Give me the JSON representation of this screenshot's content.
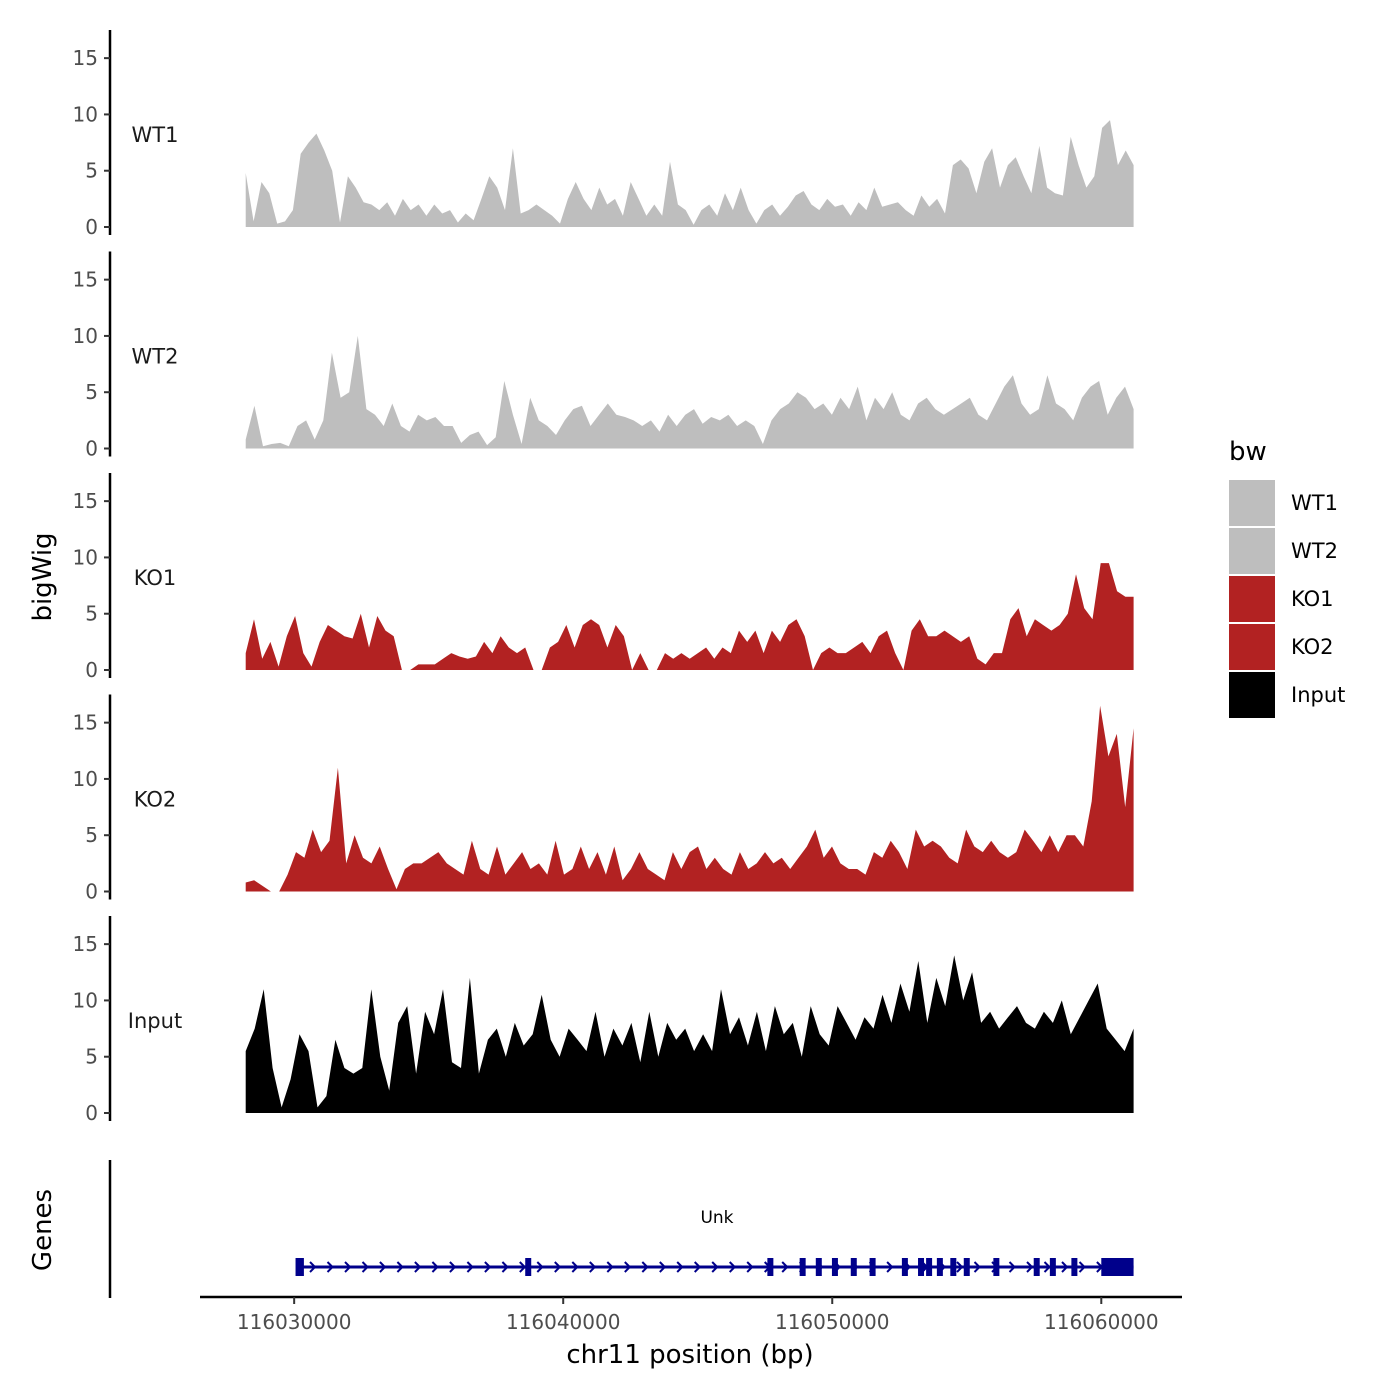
{
  "chart_data": {
    "type": "area",
    "chromosome": "chr11",
    "xlabel": "chr11 position (bp)",
    "ylabel": "bigWig",
    "genes_label": "Genes",
    "xlim": [
      116026500,
      116063000
    ],
    "x_ticks": [
      116030000,
      116040000,
      116050000,
      116060000
    ],
    "x_tick_labels": [
      "116030000",
      "116040000",
      "116050000",
      "116060000"
    ],
    "ylim": [
      0,
      17.5
    ],
    "y_ticks": [
      0,
      5,
      10,
      15
    ],
    "y_tick_labels": [
      "0",
      "5",
      "10",
      "15"
    ],
    "data_start": 116028200,
    "data_end": 116061200,
    "legend": {
      "title": "bw",
      "position": "right",
      "entries": [
        {
          "label": "WT1",
          "color": "#bebebe"
        },
        {
          "label": "WT2",
          "color": "#bebebe"
        },
        {
          "label": "KO1",
          "color": "#b22222"
        },
        {
          "label": "KO2",
          "color": "#b22222"
        },
        {
          "label": "Input",
          "color": "#000000"
        }
      ]
    },
    "series": [
      {
        "name": "WT1",
        "color": "#bebebe",
        "values": [
          4.8,
          0.5,
          4.0,
          3.0,
          0.3,
          0.5,
          1.5,
          6.5,
          7.5,
          8.3,
          6.8,
          5.0,
          0.4,
          4.5,
          3.5,
          2.2,
          2.0,
          1.5,
          2.2,
          1.0,
          2.5,
          1.5,
          2.0,
          1.0,
          2.0,
          1.2,
          1.5,
          0.4,
          1.2,
          0.6,
          2.5,
          4.5,
          3.5,
          1.5,
          7.0,
          1.2,
          1.5,
          2.0,
          1.5,
          1.0,
          0.3,
          2.5,
          4.0,
          2.5,
          1.5,
          3.5,
          2.0,
          2.5,
          1.0,
          4.0,
          2.5,
          1.0,
          2.0,
          1.0,
          5.8,
          2.0,
          1.5,
          0.2,
          1.5,
          2.0,
          1.0,
          3.0,
          1.5,
          3.5,
          1.5,
          0.3,
          1.5,
          2.0,
          1.0,
          1.8,
          2.8,
          3.2,
          2.0,
          1.5,
          2.5,
          1.8,
          2.0,
          1.0,
          2.2,
          1.5,
          3.5,
          1.8,
          2.0,
          2.2,
          1.5,
          1.0,
          2.8,
          1.8,
          2.5,
          1.2,
          5.5,
          6.0,
          5.2,
          3.0,
          5.8,
          7.0,
          3.5,
          5.5,
          6.2,
          4.5,
          3.0,
          7.2,
          3.5,
          3.0,
          2.8,
          8.0,
          5.5,
          3.5,
          4.5,
          8.8,
          9.5,
          5.5,
          6.8,
          5.5
        ]
      },
      {
        "name": "WT2",
        "color": "#bebebe",
        "values": [
          0.8,
          3.8,
          0.2,
          0.4,
          0.5,
          0.2,
          2.0,
          2.5,
          0.8,
          2.5,
          8.5,
          4.5,
          5.0,
          10.0,
          3.5,
          3.0,
          2.0,
          4.0,
          2.0,
          1.5,
          3.0,
          2.5,
          2.8,
          2.0,
          2.0,
          0.5,
          1.2,
          1.5,
          0.3,
          1.0,
          6.0,
          3.0,
          0.4,
          4.5,
          2.5,
          2.0,
          1.2,
          2.5,
          3.5,
          3.8,
          2.0,
          3.0,
          4.0,
          3.0,
          2.8,
          2.5,
          2.0,
          2.5,
          1.5,
          3.0,
          2.0,
          3.0,
          3.5,
          2.2,
          2.8,
          2.5,
          3.0,
          2.0,
          2.5,
          2.0,
          0.4,
          2.5,
          3.5,
          4.0,
          5.0,
          4.5,
          3.5,
          4.0,
          3.0,
          4.5,
          3.5,
          5.5,
          2.5,
          4.5,
          3.5,
          5.0,
          3.0,
          2.5,
          4.0,
          4.5,
          3.5,
          3.0,
          3.5,
          4.0,
          4.5,
          3.0,
          2.5,
          4.0,
          5.5,
          6.5,
          4.0,
          3.0,
          3.5,
          6.5,
          4.0,
          3.5,
          2.5,
          4.5,
          5.5,
          6.0,
          3.0,
          4.5,
          5.5,
          3.5
        ]
      },
      {
        "name": "KO1",
        "color": "#b22222",
        "values": [
          1.5,
          4.5,
          1.0,
          2.5,
          0.3,
          3.0,
          4.8,
          1.5,
          0.3,
          2.5,
          4.0,
          3.5,
          3.0,
          2.8,
          5.0,
          2.0,
          4.8,
          3.5,
          3.0,
          0.0,
          0.0,
          0.5,
          0.5,
          0.5,
          1.0,
          1.5,
          1.2,
          1.0,
          1.2,
          2.5,
          1.5,
          3.0,
          2.0,
          1.5,
          2.0,
          0.0,
          0.0,
          2.0,
          2.5,
          4.0,
          2.0,
          4.0,
          4.5,
          4.0,
          2.0,
          4.0,
          3.0,
          0.0,
          1.5,
          0.0,
          0.0,
          1.5,
          1.0,
          1.5,
          1.0,
          1.5,
          2.0,
          1.0,
          2.0,
          1.5,
          3.5,
          2.5,
          3.5,
          1.5,
          3.5,
          2.5,
          4.0,
          4.5,
          3.0,
          0.0,
          1.5,
          2.0,
          1.5,
          1.5,
          2.0,
          2.5,
          1.5,
          3.0,
          3.5,
          1.5,
          0.0,
          3.5,
          4.5,
          3.0,
          3.0,
          3.5,
          3.0,
          2.5,
          3.0,
          1.0,
          0.5,
          1.5,
          1.5,
          4.5,
          5.5,
          3.0,
          4.5,
          4.0,
          3.5,
          4.0,
          5.0,
          8.5,
          5.5,
          4.5,
          9.5,
          9.5,
          7.0,
          6.5,
          6.5
        ]
      },
      {
        "name": "KO2",
        "color": "#b22222",
        "values": [
          0.8,
          1.0,
          0.5,
          0.0,
          0.0,
          1.5,
          3.5,
          3.0,
          5.5,
          3.5,
          4.5,
          11.0,
          2.5,
          5.0,
          3.0,
          2.5,
          4.0,
          2.0,
          0.2,
          2.0,
          2.5,
          2.5,
          3.0,
          3.5,
          2.5,
          2.0,
          1.5,
          4.5,
          2.0,
          1.5,
          4.0,
          1.5,
          2.5,
          3.5,
          2.0,
          2.5,
          1.5,
          4.5,
          1.5,
          2.0,
          4.0,
          2.0,
          3.5,
          1.5,
          4.0,
          1.0,
          2.0,
          3.5,
          2.0,
          1.5,
          1.0,
          3.5,
          2.0,
          3.5,
          4.0,
          2.0,
          3.0,
          2.0,
          1.5,
          3.5,
          2.0,
          2.5,
          3.5,
          2.5,
          3.0,
          2.0,
          3.0,
          4.0,
          5.5,
          3.0,
          4.0,
          2.5,
          2.0,
          2.0,
          1.5,
          3.5,
          3.0,
          4.5,
          3.5,
          2.0,
          5.5,
          4.0,
          4.5,
          4.0,
          3.0,
          2.5,
          5.5,
          4.0,
          3.5,
          4.5,
          3.5,
          3.0,
          3.5,
          5.5,
          4.5,
          3.5,
          5.0,
          3.5,
          5.0,
          5.0,
          4.0,
          8.0,
          16.5,
          12.0,
          14.0,
          7.5,
          14.5
        ]
      },
      {
        "name": "Input",
        "color": "#000000",
        "values": [
          5.5,
          7.5,
          11.0,
          4.0,
          0.5,
          3.0,
          7.0,
          5.5,
          0.5,
          1.5,
          6.5,
          4.0,
          3.5,
          4.0,
          11.0,
          5.0,
          2.0,
          8.0,
          9.5,
          3.5,
          9.0,
          7.0,
          11.0,
          4.5,
          4.0,
          12.0,
          3.5,
          6.5,
          7.5,
          5.0,
          8.0,
          6.0,
          7.0,
          10.5,
          6.5,
          5.0,
          7.5,
          6.5,
          5.5,
          9.0,
          5.0,
          7.5,
          6.0,
          8.0,
          4.5,
          9.0,
          5.0,
          8.0,
          6.5,
          7.5,
          5.5,
          7.0,
          5.5,
          11.0,
          7.0,
          8.5,
          6.0,
          9.0,
          5.5,
          9.5,
          7.0,
          8.0,
          5.0,
          9.5,
          7.0,
          6.0,
          9.5,
          8.0,
          6.5,
          8.5,
          7.5,
          10.5,
          8.0,
          11.5,
          9.0,
          13.5,
          8.0,
          12.0,
          9.5,
          14.0,
          10.0,
          12.5,
          8.0,
          9.0,
          7.5,
          8.5,
          9.5,
          8.0,
          7.5,
          9.0,
          8.0,
          10.0,
          7.0,
          8.5,
          10.0,
          11.5,
          7.5,
          6.5,
          5.5,
          7.5
        ]
      }
    ],
    "gene_track": {
      "gene_name": "Unk",
      "strand": "+",
      "start": 116030200,
      "end": 116061200,
      "color": "#00008b",
      "exons": [
        116030250,
        116038700,
        116047700,
        116048900,
        116049500,
        116050100,
        116050800,
        116051500,
        116052700,
        116053300,
        116053600,
        116054000,
        116054500,
        116055000,
        116056100,
        116057600,
        116058200,
        116059000
      ]
    }
  }
}
